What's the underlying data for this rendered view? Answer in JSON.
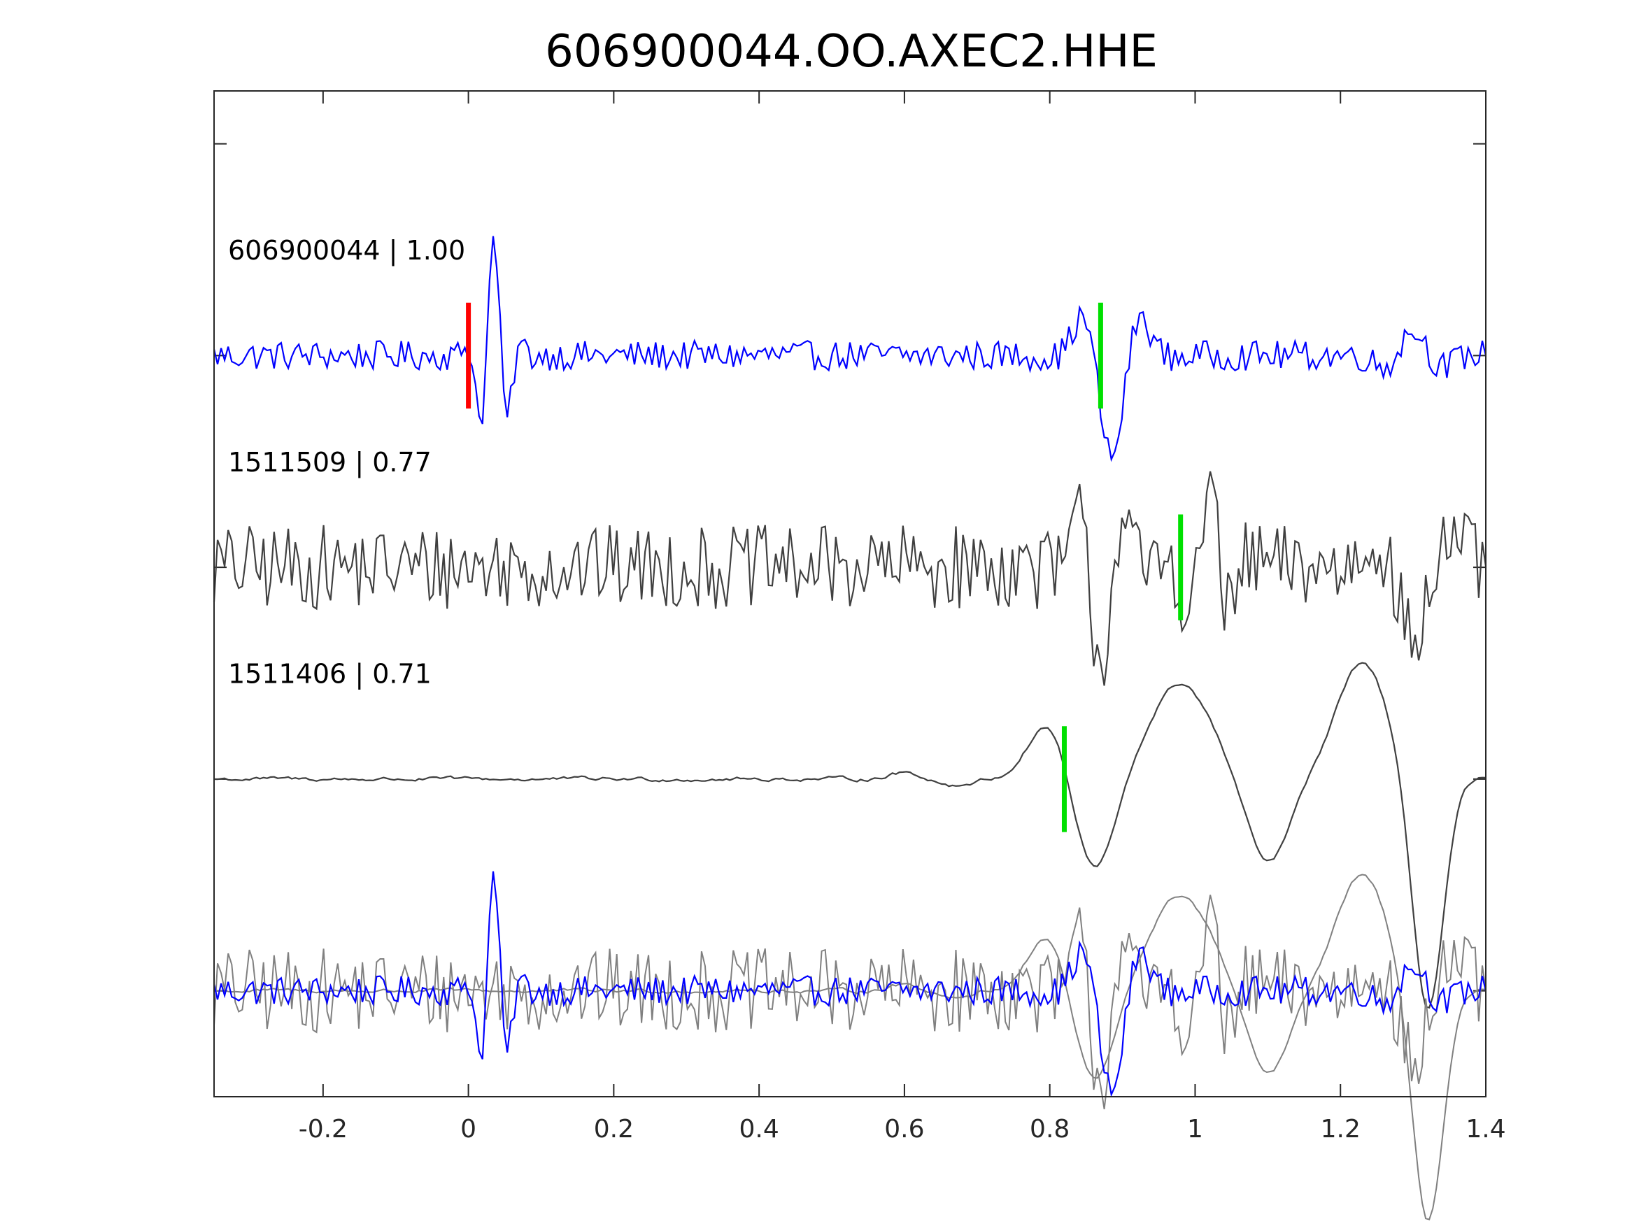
{
  "chart_data": {
    "type": "line",
    "title": "606900044.OO.AXEC2.HHE",
    "xlabel": "",
    "ylabel": "",
    "xlim": [
      -0.35,
      1.4
    ],
    "x_ticks": [
      -0.2,
      0,
      0.2,
      0.4,
      0.6,
      0.8,
      1,
      1.2,
      1.4
    ],
    "x_tick_labels": [
      "-0.2",
      "0",
      "0.2",
      "0.4",
      "0.6",
      "0.8",
      "1",
      "1.2",
      "1.4"
    ],
    "ylim": [
      -0.5,
      4.25
    ],
    "y_ticks": [
      0,
      1,
      2,
      3,
      4
    ],
    "y_tick_labels_shown": false,
    "grid": false,
    "legend": false,
    "colors": {
      "reference_trace": "#0000ff",
      "neighbor_trace": "#404040",
      "overlay_neighbor": "#808080",
      "reference_pick": "#ff0000",
      "neighbor_pick": "#00e000",
      "axes": "#262626"
    },
    "series": [
      {
        "label": "606900044 | 1.00",
        "offset": 3,
        "color": "#0000ff",
        "noise_amp": 0.07,
        "events": [
          {
            "t": 0.035,
            "amp": 0.55,
            "freq": 24,
            "width": 0.025
          },
          {
            "t": 0.885,
            "amp": -0.48,
            "freq": 10,
            "width": 0.045
          },
          {
            "t": 1.3,
            "amp": 0.12,
            "freq": 10,
            "width": 0.05
          }
        ],
        "picks": [
          {
            "t": 0.0,
            "color": "#ff0000",
            "type": "reference"
          },
          {
            "t": 0.87,
            "color": "#00e000",
            "type": "neighbor"
          }
        ]
      },
      {
        "label": "1511509 | 0.77",
        "offset": 2,
        "color": "#404040",
        "noise_amp": 0.2,
        "events": [
          {
            "t": 0.87,
            "amp": -0.45,
            "freq": 14,
            "width": 0.04
          },
          {
            "t": 1.02,
            "amp": 0.4,
            "freq": 16,
            "width": 0.04
          },
          {
            "t": 1.3,
            "amp": -0.35,
            "freq": 8,
            "width": 0.06
          }
        ],
        "picks": [
          {
            "t": 0.98,
            "color": "#00e000",
            "type": "neighbor"
          }
        ]
      },
      {
        "label": "1511406 | 0.71",
        "offset": 1,
        "color": "#404040",
        "noise_amp": 0.012,
        "events": [
          {
            "t": 0.8,
            "amp": 0.28,
            "freq": 0,
            "width": 0.04
          },
          {
            "t": 0.86,
            "amp": -0.45,
            "freq": 0,
            "width": 0.04
          },
          {
            "t": 0.98,
            "amp": 0.45,
            "freq": 0,
            "width": 0.06
          },
          {
            "t": 1.1,
            "amp": -0.4,
            "freq": 0,
            "width": 0.04
          },
          {
            "t": 1.23,
            "amp": 0.55,
            "freq": 0,
            "width": 0.05
          },
          {
            "t": 1.32,
            "amp": -1.1,
            "freq": 0,
            "width": 0.03
          }
        ],
        "picks": [
          {
            "t": 0.82,
            "color": "#00e000",
            "type": "neighbor"
          }
        ]
      }
    ],
    "overlay": {
      "offset": 0,
      "description_series": [
        "606900044 | 1.00",
        "1511509 | 0.77",
        "1511406 | 0.71"
      ]
    }
  }
}
